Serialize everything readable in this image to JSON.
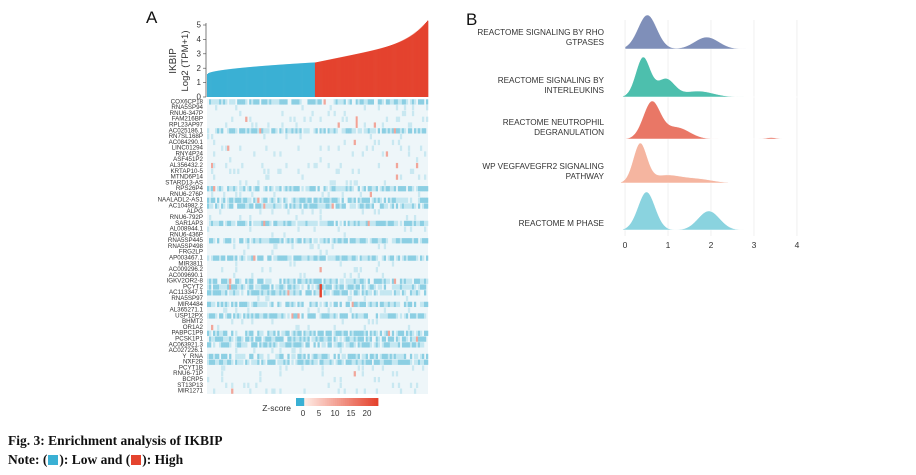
{
  "panels": {
    "a": "A",
    "b": "B"
  },
  "colors": {
    "low": "#3ab0d4",
    "high": "#e4432e"
  },
  "chart_data": [
    {
      "type": "bar",
      "panel": "A",
      "ylabel_gene": "IKBIP",
      "ylabel_unit": "Log2 (TPM+1)",
      "ylim": [
        0,
        5
      ],
      "yticks": [
        "0",
        "1",
        "2",
        "3",
        "4",
        "5"
      ],
      "groups": [
        {
          "name": "Low",
          "color": "#3ab0d4",
          "count": 105,
          "start": 1.6,
          "end": 2.4
        },
        {
          "name": "High",
          "color": "#e4432e",
          "count": 110,
          "start": 2.4,
          "end": 5.3
        }
      ]
    },
    {
      "type": "heatmap",
      "panel": "A",
      "rows": [
        "COX6CP18",
        "RNA5SP94",
        "RNU6-347P",
        "FAM216BP",
        "RPL23AP97",
        "AC025186.1",
        "RN7SL168P",
        "AC084290.1",
        "LINC01294",
        "RNY4P24",
        "ASF451P2",
        "AL356432.2",
        "KRTAP10-5",
        "MTND6P14",
        "STARD13-AS",
        "RPS26P4",
        "RNU6-276P",
        "NAALADL2-AS1",
        "AC104982.2",
        "ALPG",
        "RNU6-792P",
        "SAR1AP3",
        "AL008944.1",
        "RNU6-436P",
        "RNA5SP445",
        "RNA5SP498",
        "FRG2LP",
        "AP003467.1",
        "MIR3811",
        "AC009296.2",
        "AC009690.1",
        "IGKV2OR2-8",
        "PCYT2",
        "AC113347.1",
        "RNA5SP97",
        "MIR4484",
        "AL365271.1",
        "USP12PX",
        "BHMT2",
        "OR1A2",
        "PABPC1P9",
        "PCSK1P1",
        "AC063921.3",
        "AC027226.1",
        "Y_RNA",
        "NXF2B",
        "PCYT1B",
        "RNU6-71P",
        "BCRP5",
        "ST13P13",
        "MIR1271"
      ],
      "colorbar_label": "Z-score",
      "colorbar_ticks": [
        "0",
        "5",
        "10",
        "15",
        "20"
      ]
    },
    {
      "type": "area",
      "panel": "B",
      "subtype": "ridgeline",
      "x_ticks": [
        "0",
        "1",
        "2",
        "3",
        "4"
      ],
      "xlim": [
        -0.35,
        4.35
      ],
      "series": [
        {
          "name": "REACTOME SIGNALING BY RHO GTPASES",
          "lines": [
            "REACTOME SIGNALING BY RHO",
            "GTPASES"
          ],
          "color": "#7f8fb9",
          "peaks": [
            [
              0.52,
              0.22,
              1.0
            ],
            [
              1.9,
              0.28,
              0.35
            ]
          ],
          "range": [
            0.0,
            2.95
          ]
        },
        {
          "name": "REACTOME SIGNALING BY INTERLEUKINS",
          "lines": [
            "REACTOME SIGNALING BY",
            "INTERLEUKINS"
          ],
          "color": "#4dbfad",
          "peaks": [
            [
              0.42,
              0.17,
              1.0
            ],
            [
              0.95,
              0.2,
              0.45
            ],
            [
              1.7,
              0.35,
              0.15
            ]
          ],
          "range": [
            -0.05,
            4.05
          ]
        },
        {
          "name": "REACTOME NEUTROPHIL DEGRANULATION",
          "lines": [
            "REACTOME NEUTROPHIL",
            "DEGRANULATION"
          ],
          "color": "#e97766",
          "peaks": [
            [
              0.62,
              0.2,
              1.0
            ],
            [
              1.2,
              0.3,
              0.32
            ],
            [
              3.4,
              0.12,
              0.04
            ]
          ],
          "range": [
            0.0,
            3.65
          ]
        },
        {
          "name": "WP VEGFAVEGFR2 SIGNALING PATHWAY",
          "lines": [
            "WP VEGFAVEGFR2 SIGNALING",
            "PATHWAY"
          ],
          "color": "#f5b5a0",
          "peaks": [
            [
              0.35,
              0.16,
              1.0
            ],
            [
              0.95,
              0.35,
              0.2
            ],
            [
              1.7,
              0.35,
              0.1
            ]
          ],
          "range": [
            -0.1,
            2.4
          ]
        },
        {
          "name": "REACTOME M PHASE",
          "lines": [
            "REACTOME M PHASE"
          ],
          "color": "#8ad3df",
          "peaks": [
            [
              0.5,
              0.2,
              1.0
            ],
            [
              1.95,
              0.25,
              0.5
            ]
          ],
          "range": [
            -0.05,
            2.75
          ]
        }
      ]
    }
  ],
  "caption": {
    "line1": "Fig. 3: Enrichment analysis of IKBIP",
    "line2_prefix": "Note: (",
    "line2_mid": "): Low and (",
    "line2_suffix": "): High"
  }
}
